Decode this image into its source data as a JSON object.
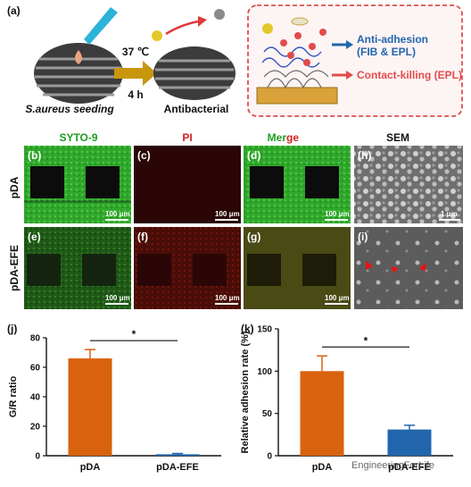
{
  "figure": {
    "panels": {
      "a": "(a)",
      "b": "(b)",
      "c": "(c)",
      "d": "(d)",
      "e": "(e)",
      "f": "(f)",
      "g": "(g)",
      "h": "(h)",
      "i": "(i)",
      "j": "(j)",
      "k": "(k)"
    },
    "schematic": {
      "left_caption": "S.aureus seeding",
      "temperature": "37 ℃",
      "time": "4 h",
      "right_caption": "Antibacterial",
      "anti_adhesion": "Anti-adhesion",
      "anti_adhesion_sub": "(FIB & EPL)",
      "contact_killing": "Contact-killing (EPL)"
    },
    "columns": {
      "syto": "SYTO-9",
      "pi": "PI",
      "merge_1": "Mer",
      "merge_2": "ge",
      "sem": "SEM"
    },
    "rows": {
      "pda": "pDA",
      "pda_efe": "pDA-EFE"
    },
    "scalebars": {
      "fluor": "100 μm",
      "sem": "1 μm"
    },
    "colors": {
      "green": "#1f9e1f",
      "red": "#d42020",
      "orange": "#d9620e",
      "blue": "#2166ac",
      "arrow_gold": "#c8960c"
    },
    "significance": "*",
    "watermark": "EngineeringForLife"
  },
  "chart_data": [
    {
      "panel": "(j)",
      "type": "bar",
      "categories": [
        "pDA",
        "pDA-EFE"
      ],
      "values": [
        66,
        1
      ],
      "errors": [
        6,
        0.5
      ],
      "ylabel": "G/R ratio",
      "ylim": [
        0,
        80
      ],
      "yticks": [
        "0",
        "20",
        "40",
        "60",
        "80"
      ],
      "colors": [
        "#d9620e",
        "#2166ac"
      ]
    },
    {
      "panel": "(k)",
      "type": "bar",
      "categories": [
        "pDA",
        "pDA-EFE"
      ],
      "values": [
        100,
        31
      ],
      "errors": [
        18,
        5
      ],
      "ylabel": "Relative adhesion rate (%)",
      "ylim": [
        0,
        150
      ],
      "yticks": [
        "0",
        "50",
        "100",
        "150"
      ],
      "colors": [
        "#d9620e",
        "#2166ac"
      ]
    }
  ]
}
